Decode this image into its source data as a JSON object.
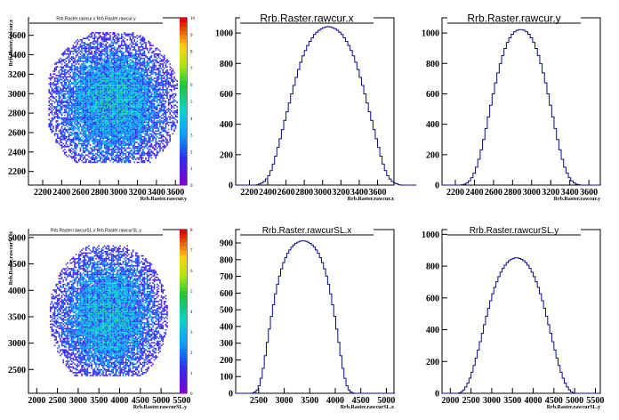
{
  "chart_data": [
    {
      "type": "heatmap",
      "title": "Rrb.Raster.rawcur.x:Rrb.Raster.rawcur.y",
      "xlabel": "Rrb.Raster.rawcur.y",
      "ylabel": "Rrb.Raster.rawcur.x",
      "xlim": [
        2050,
        3720
      ],
      "ylim": [
        2060,
        3780
      ],
      "x_ticks": [
        "2200",
        "2400",
        "2600",
        "2800",
        "3000",
        "3200",
        "3400",
        "3600"
      ],
      "y_ticks": [
        "2200",
        "2400",
        "2600",
        "2800",
        "3000",
        "3200",
        "3400",
        "3600"
      ],
      "cloud": {
        "center": [
          2930,
          2920
        ],
        "spread": [
          400,
          420
        ],
        "range_x": [
          2250,
          3620
        ],
        "range_y": [
          2300,
          3640
        ]
      },
      "z_ticks": [
        "0",
        "1",
        "2",
        "3",
        "4",
        "5",
        "6",
        "7",
        "8",
        "9",
        "10"
      ],
      "zlim": [
        0,
        10
      ]
    },
    {
      "type": "histogram",
      "title": "Rrb.Raster.rawcur.x",
      "xlabel": "Rrb.Raster.rawcur.x",
      "xlim": [
        2050,
        3780
      ],
      "ylim": [
        0,
        1100
      ],
      "x_ticks": [
        "2200",
        "2400",
        "2600",
        "2800",
        "3000",
        "3200",
        "3400",
        "3600"
      ],
      "y_ticks": [
        "0",
        "200",
        "400",
        "600",
        "800",
        "1000"
      ],
      "bins": {
        "start": 2050,
        "width": 25,
        "values": [
          0,
          0,
          0,
          0,
          0,
          0,
          0,
          0,
          0,
          2,
          8,
          14,
          24,
          40,
          62,
          95,
          138,
          190,
          248,
          305,
          365,
          425,
          482,
          540,
          600,
          655,
          708,
          760,
          808,
          850,
          885,
          918,
          945,
          968,
          990,
          1005,
          1018,
          1028,
          1035,
          1040,
          1042,
          1040,
          1035,
          1028,
          1018,
          1005,
          990,
          968,
          945,
          918,
          885,
          850,
          808,
          760,
          708,
          655,
          600,
          540,
          482,
          425,
          365,
          305,
          248,
          190,
          138,
          95,
          62,
          40,
          24,
          14,
          8,
          2,
          0,
          0,
          0,
          0,
          0,
          0,
          0
        ]
      }
    },
    {
      "type": "histogram",
      "title": "Rrb.Raster.rawcur.y",
      "xlabel": "Rrb.Raster.rawcur.y",
      "xlim": [
        2060,
        3720
      ],
      "ylim": [
        0,
        1100
      ],
      "x_ticks": [
        "2200",
        "2400",
        "2600",
        "2800",
        "3000",
        "3200",
        "3400",
        "3600"
      ],
      "y_ticks": [
        "0",
        "200",
        "400",
        "600",
        "800",
        "1000"
      ],
      "bins": {
        "start": 2060,
        "width": 25,
        "values": [
          0,
          0,
          0,
          0,
          0,
          0,
          0,
          0,
          2,
          6,
          14,
          28,
          48,
          78,
          118,
          170,
          232,
          300,
          372,
          448,
          525,
          600,
          672,
          738,
          798,
          852,
          898,
          938,
          968,
          992,
          1008,
          1018,
          1022,
          1022,
          1018,
          1008,
          992,
          968,
          938,
          898,
          852,
          798,
          738,
          672,
          600,
          525,
          448,
          372,
          300,
          232,
          170,
          118,
          78,
          48,
          28,
          14,
          6,
          2,
          0,
          0,
          0,
          0,
          0,
          0,
          0,
          0
        ]
      }
    },
    {
      "type": "heatmap",
      "title": "Rrb.Raster.rawcurSL.x:Rrb.Raster.rawcurSL.y",
      "xlabel": "Rrb.Raster.rawcurSL.y",
      "ylabel": "Rrb.Raster.rawcurSL.x",
      "xlim": [
        1800,
        5620
      ],
      "ylim": [
        2050,
        5150
      ],
      "x_ticks": [
        "2000",
        "2500",
        "3000",
        "3500",
        "4000",
        "4500",
        "5000",
        "5500"
      ],
      "y_ticks": [
        "2500",
        "3000",
        "3500",
        "4000",
        "4500",
        "5000"
      ],
      "cloud": {
        "center": [
          3720,
          3540
        ],
        "spread": [
          800,
          780
        ],
        "range_x": [
          2200,
          5400
        ],
        "range_y": [
          2400,
          4880
        ]
      },
      "z_ticks": [
        "0",
        "1",
        "2",
        "3",
        "4",
        "5",
        "6",
        "7",
        "8"
      ],
      "zlim": [
        0,
        8
      ]
    },
    {
      "type": "histogram",
      "title": "Rrb.Raster.rawcurSL.x",
      "xlabel": "Rrb.Raster.rawcurSL.x",
      "xlim": [
        2050,
        5150
      ],
      "ylim": [
        0,
        980
      ],
      "x_ticks": [
        "2500",
        "3000",
        "3500",
        "4000",
        "4500",
        "5000"
      ],
      "y_ticks": [
        "0",
        "100",
        "200",
        "300",
        "400",
        "500",
        "600",
        "700",
        "800",
        "900"
      ],
      "bins": {
        "start": 2050,
        "width": 40,
        "values": [
          0,
          0,
          0,
          0,
          0,
          0,
          0,
          0,
          2,
          8,
          20,
          45,
          90,
          150,
          225,
          305,
          385,
          460,
          530,
          595,
          652,
          702,
          745,
          782,
          812,
          838,
          858,
          875,
          888,
          898,
          905,
          910,
          912,
          912,
          910,
          905,
          898,
          888,
          875,
          858,
          838,
          812,
          782,
          745,
          702,
          652,
          595,
          530,
          460,
          385,
          305,
          225,
          150,
          90,
          45,
          20,
          8,
          2,
          0,
          0,
          0,
          0,
          0,
          0,
          0,
          0,
          0,
          0,
          0,
          0,
          0,
          0,
          0,
          0,
          0,
          0,
          0,
          0
        ]
      }
    },
    {
      "type": "histogram",
      "title": "Rrb.Raster.rawcurSL.y",
      "xlabel": "Rrb.Raster.rawcurSL.y",
      "xlim": [
        1800,
        5620
      ],
      "ylim": [
        0,
        1030
      ],
      "x_ticks": [
        "2000",
        "2500",
        "3000",
        "3500",
        "4000",
        "4500",
        "5000",
        "5500"
      ],
      "y_ticks": [
        "0",
        "200",
        "400",
        "600",
        "800",
        "1000"
      ],
      "bins": {
        "start": 1800,
        "width": 50,
        "values": [
          0,
          0,
          0,
          0,
          0,
          0,
          0,
          0,
          3,
          10,
          22,
          40,
          64,
          95,
          132,
          175,
          222,
          272,
          325,
          378,
          432,
          485,
          535,
          582,
          626,
          666,
          702,
          734,
          762,
          786,
          806,
          822,
          834,
          843,
          849,
          852,
          852,
          849,
          843,
          834,
          822,
          806,
          786,
          762,
          734,
          702,
          666,
          626,
          582,
          535,
          485,
          432,
          378,
          325,
          272,
          222,
          175,
          132,
          95,
          64,
          40,
          22,
          10,
          3,
          0,
          0,
          0,
          0,
          0,
          0,
          0,
          0,
          0,
          0,
          0,
          0
        ]
      }
    }
  ]
}
